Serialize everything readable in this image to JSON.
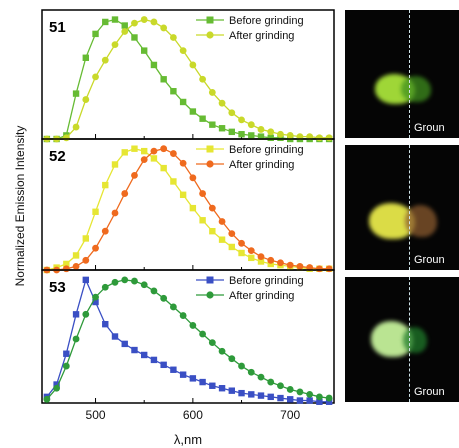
{
  "figure": {
    "ylabel": "Normalized Emission Intensity",
    "xlabel": "λ,nm",
    "x_ticks": [
      "500",
      "600",
      "700"
    ]
  },
  "photos": [
    {
      "label": "Groun",
      "left_color": "#a8e23a",
      "right_color": "#3f8f1e"
    },
    {
      "label": "Groun",
      "left_color": "#e7e84a",
      "right_color": "#8a5a2e"
    },
    {
      "label": "Groun",
      "left_color": "#c4f09a",
      "right_color": "#1f7a2a"
    }
  ],
  "chart_data": [
    {
      "type": "line",
      "panel_label": "51",
      "xlim": [
        445,
        745
      ],
      "ylim": [
        0,
        1.08
      ],
      "series": [
        {
          "name": "Before grinding",
          "color": "#66bb33",
          "marker": "square",
          "x": [
            450,
            460,
            470,
            480,
            490,
            500,
            510,
            520,
            530,
            540,
            550,
            560,
            570,
            580,
            590,
            600,
            610,
            620,
            630,
            640,
            650,
            660,
            670,
            680,
            690,
            700,
            710,
            720,
            730,
            740
          ],
          "y": [
            0.0,
            0.0,
            0.03,
            0.38,
            0.68,
            0.88,
            0.98,
            1.0,
            0.95,
            0.85,
            0.74,
            0.62,
            0.5,
            0.4,
            0.31,
            0.23,
            0.17,
            0.12,
            0.09,
            0.06,
            0.04,
            0.03,
            0.02,
            0.01,
            0.01,
            0.0,
            0.0,
            0.0,
            0.0,
            0.0
          ]
        },
        {
          "name": "After grinding",
          "color": "#c9d92a",
          "marker": "circle",
          "x": [
            450,
            460,
            470,
            480,
            490,
            500,
            510,
            520,
            530,
            540,
            550,
            560,
            570,
            580,
            590,
            600,
            610,
            620,
            630,
            640,
            650,
            660,
            670,
            680,
            690,
            700,
            710,
            720,
            730,
            740
          ],
          "y": [
            0.0,
            0.0,
            0.01,
            0.1,
            0.33,
            0.52,
            0.66,
            0.79,
            0.9,
            0.97,
            1.0,
            0.98,
            0.93,
            0.85,
            0.74,
            0.62,
            0.5,
            0.39,
            0.3,
            0.22,
            0.16,
            0.12,
            0.08,
            0.06,
            0.04,
            0.03,
            0.02,
            0.02,
            0.01,
            0.01
          ]
        }
      ]
    },
    {
      "type": "line",
      "panel_label": "52",
      "xlim": [
        445,
        745
      ],
      "ylim": [
        0,
        1.08
      ],
      "series": [
        {
          "name": "Before grinding",
          "color": "#e6e633",
          "marker": "square",
          "x": [
            450,
            460,
            470,
            480,
            490,
            500,
            510,
            520,
            530,
            540,
            550,
            560,
            570,
            580,
            590,
            600,
            610,
            620,
            630,
            640,
            650,
            660,
            670,
            680,
            690,
            700,
            710,
            720,
            730,
            740
          ],
          "y": [
            0.0,
            0.02,
            0.05,
            0.12,
            0.26,
            0.48,
            0.7,
            0.87,
            0.97,
            1.0,
            0.98,
            0.92,
            0.84,
            0.73,
            0.62,
            0.51,
            0.41,
            0.32,
            0.25,
            0.19,
            0.14,
            0.1,
            0.07,
            0.05,
            0.04,
            0.03,
            0.02,
            0.01,
            0.01,
            0.01
          ]
        },
        {
          "name": "After grinding",
          "color": "#ef6a1e",
          "marker": "circle",
          "x": [
            450,
            460,
            470,
            480,
            490,
            500,
            510,
            520,
            530,
            540,
            550,
            560,
            570,
            580,
            590,
            600,
            610,
            620,
            630,
            640,
            650,
            660,
            670,
            680,
            690,
            700,
            710,
            720,
            730,
            740
          ],
          "y": [
            0.0,
            0.0,
            0.01,
            0.03,
            0.08,
            0.18,
            0.32,
            0.47,
            0.63,
            0.78,
            0.91,
            0.98,
            1.0,
            0.96,
            0.88,
            0.76,
            0.63,
            0.51,
            0.4,
            0.3,
            0.22,
            0.16,
            0.11,
            0.08,
            0.06,
            0.04,
            0.03,
            0.02,
            0.01,
            0.01
          ]
        }
      ]
    },
    {
      "type": "line",
      "panel_label": "53",
      "xlim": [
        445,
        745
      ],
      "ylim": [
        0,
        1.08
      ],
      "series": [
        {
          "name": "Before grinding",
          "color": "#3a4fc4",
          "marker": "square",
          "x": [
            450,
            460,
            470,
            480,
            490,
            500,
            510,
            520,
            530,
            540,
            550,
            560,
            570,
            580,
            590,
            600,
            610,
            620,
            630,
            640,
            650,
            660,
            670,
            680,
            690,
            700,
            710,
            720,
            730,
            740
          ],
          "y": [
            0.05,
            0.15,
            0.4,
            0.72,
            1.0,
            0.82,
            0.64,
            0.54,
            0.48,
            0.43,
            0.39,
            0.35,
            0.31,
            0.27,
            0.23,
            0.2,
            0.17,
            0.14,
            0.12,
            0.1,
            0.08,
            0.07,
            0.06,
            0.05,
            0.04,
            0.03,
            0.02,
            0.02,
            0.01,
            0.01
          ]
        },
        {
          "name": "After grinding",
          "color": "#2e9a3a",
          "marker": "circle",
          "x": [
            450,
            460,
            470,
            480,
            490,
            500,
            510,
            520,
            530,
            540,
            550,
            560,
            570,
            580,
            590,
            600,
            610,
            620,
            630,
            640,
            650,
            660,
            670,
            680,
            690,
            700,
            710,
            720,
            730,
            740
          ],
          "y": [
            0.03,
            0.12,
            0.3,
            0.52,
            0.72,
            0.86,
            0.94,
            0.98,
            1.0,
            0.99,
            0.96,
            0.91,
            0.85,
            0.78,
            0.71,
            0.63,
            0.56,
            0.49,
            0.42,
            0.36,
            0.3,
            0.25,
            0.21,
            0.17,
            0.14,
            0.11,
            0.09,
            0.07,
            0.05,
            0.04
          ]
        }
      ]
    }
  ]
}
